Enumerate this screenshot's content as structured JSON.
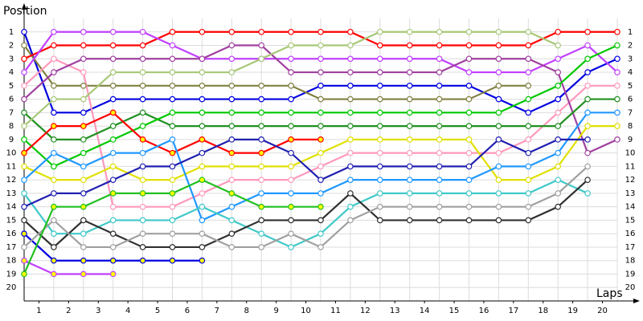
{
  "chart_data": {
    "type": "line",
    "y_label": "Position",
    "x_label": "Laps",
    "x": [
      0,
      1,
      2,
      3,
      4,
      5,
      6,
      7,
      8,
      9,
      10,
      11,
      12,
      13,
      14,
      15,
      16,
      17,
      18,
      19,
      20
    ],
    "xlim": [
      0,
      20
    ],
    "xticks": [
      {
        "value": 0.5,
        "label": "1"
      },
      {
        "value": 1.5,
        "label": "2"
      },
      {
        "value": 2.5,
        "label": "3"
      },
      {
        "value": 3.5,
        "label": "4"
      },
      {
        "value": 4.5,
        "label": "5"
      },
      {
        "value": 5.5,
        "label": "6"
      },
      {
        "value": 6.5,
        "label": "7"
      },
      {
        "value": 7.5,
        "label": "8"
      },
      {
        "value": 8.5,
        "label": "9"
      },
      {
        "value": 9.5,
        "label": "10"
      },
      {
        "value": 10.5,
        "label": "11"
      },
      {
        "value": 11.5,
        "label": "12"
      },
      {
        "value": 12.5,
        "label": "13"
      },
      {
        "value": 13.5,
        "label": "14"
      },
      {
        "value": 14.5,
        "label": "15"
      },
      {
        "value": 15.5,
        "label": "16"
      },
      {
        "value": 16.5,
        "label": "17"
      },
      {
        "value": 17.5,
        "label": "18"
      },
      {
        "value": 18.5,
        "label": "19"
      },
      {
        "value": 19.5,
        "label": "20"
      }
    ],
    "ylim": [
      21,
      0
    ],
    "yticks": [
      1,
      2,
      3,
      4,
      5,
      6,
      7,
      8,
      9,
      10,
      11,
      12,
      13,
      14,
      15,
      16,
      17,
      18,
      19,
      20
    ],
    "grid": true,
    "series": [
      {
        "color": "#0000e0",
        "marker_color": "#ffffff",
        "values": [
          1,
          7,
          7,
          6,
          6,
          6,
          6,
          6,
          6,
          6,
          5,
          5,
          5,
          5,
          5,
          5,
          6,
          7,
          6,
          4,
          3
        ]
      },
      {
        "color": "#808040",
        "marker_color": "#ffffff",
        "values": [
          2,
          5,
          5,
          5,
          5,
          5,
          5,
          5,
          5,
          5,
          6,
          6,
          6,
          6,
          6,
          6,
          5,
          5,
          null,
          null,
          null
        ]
      },
      {
        "color": "#ff0000",
        "marker_color": "#ffffff",
        "values": [
          3,
          2,
          2,
          2,
          2,
          1,
          1,
          1,
          1,
          1,
          1,
          1,
          2,
          2,
          2,
          2,
          2,
          2,
          1,
          1,
          1
        ]
      },
      {
        "color": "#c040ff",
        "marker_color": "#ffffff",
        "values": [
          4,
          1,
          1,
          1,
          1,
          2,
          3,
          3,
          3,
          3,
          3,
          3,
          3,
          3,
          3,
          4,
          4,
          4,
          3,
          2,
          4
        ]
      },
      {
        "color": "#ff99bb",
        "marker_color": "#ffffff",
        "values": [
          5,
          3,
          4,
          14,
          14,
          14,
          13,
          12,
          12,
          12,
          11,
          10,
          10,
          10,
          10,
          10,
          10,
          9,
          7,
          5,
          5
        ]
      },
      {
        "color": "#a040a0",
        "marker_color": "#ffffff",
        "values": [
          6,
          4,
          3,
          3,
          3,
          3,
          3,
          2,
          2,
          4,
          4,
          4,
          4,
          4,
          4,
          3,
          3,
          3,
          4,
          10,
          9
        ]
      },
      {
        "color": "#209020",
        "marker_color": "#ffffff",
        "values": [
          7,
          9,
          9,
          8,
          7,
          8,
          8,
          8,
          8,
          8,
          8,
          8,
          8,
          8,
          8,
          8,
          8,
          8,
          8,
          6,
          6
        ]
      },
      {
        "color": "#a8c878",
        "marker_color": "#ffffff",
        "values": [
          8,
          6,
          6,
          4,
          4,
          4,
          4,
          4,
          3,
          2,
          2,
          2,
          1,
          1,
          1,
          1,
          1,
          1,
          2,
          null,
          null
        ]
      },
      {
        "color": "#00c800",
        "marker_color": "#ffffff",
        "values": [
          9,
          11,
          10,
          9,
          8,
          7,
          7,
          7,
          7,
          7,
          7,
          7,
          7,
          7,
          7,
          7,
          7,
          6,
          5,
          3,
          2
        ]
      },
      {
        "color": "#ff0000",
        "marker_color": "#ffff00",
        "values": [
          10,
          8,
          8,
          7,
          9,
          10,
          9,
          10,
          10,
          9,
          9,
          null,
          null,
          null,
          null,
          null,
          null,
          null,
          null,
          null,
          null
        ]
      },
      {
        "color": "#e0e000",
        "marker_color": "#ffffff",
        "values": [
          11,
          12,
          12,
          11,
          12,
          12,
          11,
          11,
          11,
          11,
          10,
          9,
          9,
          9,
          9,
          9,
          12,
          12,
          11,
          8,
          8
        ]
      },
      {
        "color": "#2098ff",
        "marker_color": "#ffffff",
        "values": [
          12,
          10,
          11,
          10,
          10,
          9,
          15,
          14,
          13,
          13,
          13,
          12,
          12,
          12,
          12,
          12,
          11,
          11,
          10,
          7,
          7
        ]
      },
      {
        "color": "#40c8c8",
        "marker_color": "#ffffff",
        "values": [
          13,
          16,
          16,
          15,
          15,
          15,
          14,
          15,
          16,
          17,
          16,
          14,
          13,
          13,
          13,
          13,
          13,
          13,
          12,
          13,
          null
        ]
      },
      {
        "color": "#2020b0",
        "marker_color": "#ffffff",
        "values": [
          14,
          13,
          13,
          12,
          11,
          11,
          10,
          9,
          9,
          10,
          12,
          11,
          11,
          11,
          11,
          11,
          9,
          10,
          9,
          9,
          null
        ]
      },
      {
        "color": "#303030",
        "marker_color": "#ffffff",
        "values": [
          15,
          17,
          15,
          16,
          17,
          17,
          17,
          16,
          15,
          15,
          15,
          13,
          15,
          15,
          15,
          15,
          15,
          15,
          14,
          12,
          null
        ]
      },
      {
        "color": "#0000e0",
        "marker_color": "#ffff00",
        "values": [
          16,
          18,
          18,
          18,
          18,
          18,
          18,
          null,
          null,
          null,
          null,
          null,
          null,
          null,
          null,
          null,
          null,
          null,
          null,
          null,
          null
        ]
      },
      {
        "color": "#a0a0a0",
        "marker_color": "#ffffff",
        "values": [
          17,
          15,
          17,
          17,
          16,
          16,
          16,
          17,
          17,
          16,
          17,
          15,
          14,
          14,
          14,
          14,
          14,
          14,
          13,
          11,
          null
        ]
      },
      {
        "color": "#c040ff",
        "marker_color": "#ffff00",
        "values": [
          18,
          19,
          19,
          19,
          null,
          null,
          null,
          null,
          null,
          null,
          null,
          null,
          null,
          null,
          null,
          null,
          null,
          null,
          null,
          null,
          null
        ]
      },
      {
        "color": "#20c020",
        "marker_color": "#ffff00",
        "values": [
          19,
          14,
          14,
          13,
          13,
          13,
          12,
          13,
          14,
          14,
          14,
          null,
          null,
          null,
          null,
          null,
          null,
          null,
          null,
          null,
          null
        ]
      }
    ]
  }
}
